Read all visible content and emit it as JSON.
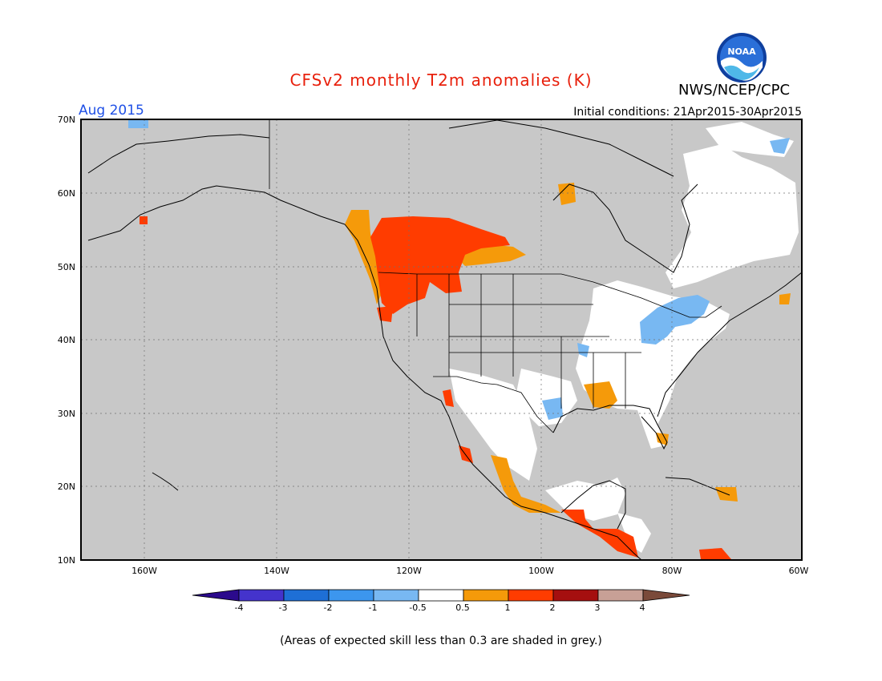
{
  "header": {
    "title": "CFSv2 monthly T2m anomalies (K)",
    "agency": "NWS/NCEP/CPC",
    "month": "Aug 2015",
    "initial_conditions": "Initial conditions: 21Apr2015-30Apr2015",
    "logo_text": "NOAA"
  },
  "axes": {
    "lat_labels": [
      "70N",
      "60N",
      "50N",
      "40N",
      "30N",
      "20N",
      "10N"
    ],
    "lon_labels": [
      "160W",
      "140W",
      "120W",
      "100W",
      "80W",
      "60W"
    ]
  },
  "legend": {
    "tick_labels": [
      "-4",
      "-3",
      "-2",
      "-1",
      "-0.5",
      "0.5",
      "1",
      "2",
      "3",
      "4"
    ],
    "colors": [
      "#2b0a8c",
      "#4433cc",
      "#1e6fd6",
      "#3c96ee",
      "#78b8f2",
      "#ffffff",
      "#f59a0a",
      "#ff3c00",
      "#a50f0f",
      "#c8a096",
      "#7a4a3a"
    ]
  },
  "footnote": "(Areas of expected skill less than 0.3 are shaded in grey.)",
  "colors": {
    "title": "#e8200c",
    "month": "#1f50e6",
    "map_background": "#c8c8c8",
    "coastline": "#000000"
  },
  "anomaly_regions": [
    {
      "name": "western-canada-warm",
      "level": "1 to 2"
    },
    {
      "name": "pacific-northwest-coast",
      "level": "0.5 to 1"
    },
    {
      "name": "great-lakes-cool",
      "level": "-1 to -0.5"
    },
    {
      "name": "texas-cool",
      "level": "-1 to -0.5"
    },
    {
      "name": "mexico-pacific-coast",
      "level": "0.5 to 1"
    },
    {
      "name": "central-america-warm",
      "level": "1 to 2"
    },
    {
      "name": "caribbean-warm",
      "level": "0.5 to 1"
    },
    {
      "name": "eastern-us-neutral",
      "level": "-0.5 to 0.5"
    },
    {
      "name": "quebec-neutral",
      "level": "-0.5 to 0.5"
    }
  ]
}
